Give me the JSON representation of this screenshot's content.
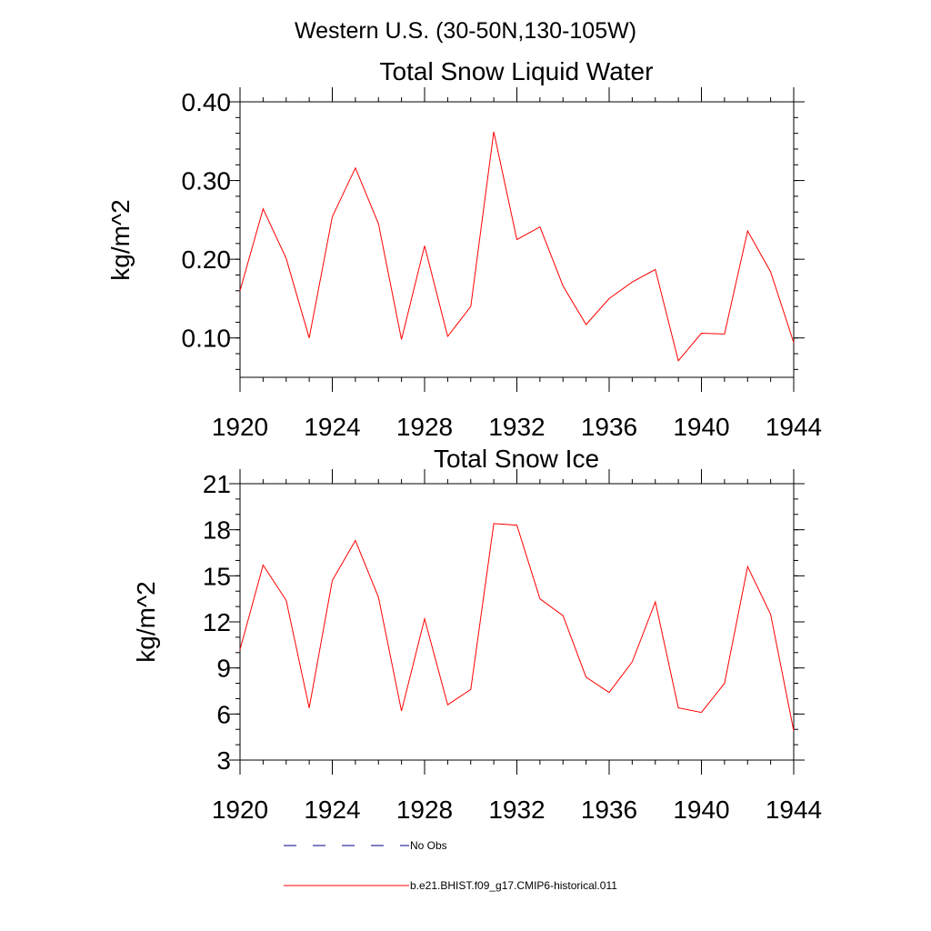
{
  "figure": {
    "suptitle": "Western U.S. (30-50N,130-105W)"
  },
  "colors": {
    "series": "#ff0000",
    "obs": "#000080",
    "axis": "#000000"
  },
  "chart_data": [
    {
      "type": "line",
      "title": "Total Snow Liquid Water",
      "ylabel": "kg/m^2",
      "xlabel": "",
      "xlim": [
        1920,
        1944
      ],
      "ylim": [
        0.05,
        0.4
      ],
      "xticks": [
        1920,
        1924,
        1928,
        1932,
        1936,
        1940,
        1944
      ],
      "xtick_labels": [
        "1920",
        "1924",
        "1928",
        "1932",
        "1936",
        "1940",
        "1944"
      ],
      "yticks": [
        0.1,
        0.2,
        0.3,
        0.4
      ],
      "ytick_labels": [
        "0.10",
        "0.20",
        "0.30",
        "0.40"
      ],
      "yminor_step": 0.02,
      "grid": false,
      "x": [
        1920,
        1921,
        1922,
        1923,
        1924,
        1925,
        1926,
        1927,
        1928,
        1929,
        1930,
        1931,
        1932,
        1933,
        1934,
        1935,
        1936,
        1937,
        1938,
        1939,
        1940,
        1941,
        1942,
        1943,
        1944
      ],
      "series": [
        {
          "name": "b.e21.BHIST.f09_g17.CMIP6-historical.011",
          "values": [
            0.16,
            0.264,
            0.201,
            0.1,
            0.254,
            0.316,
            0.245,
            0.098,
            0.217,
            0.102,
            0.14,
            0.362,
            0.225,
            0.241,
            0.166,
            0.117,
            0.15,
            0.171,
            0.187,
            0.071,
            0.106,
            0.105,
            0.236,
            0.184,
            0.094
          ]
        }
      ]
    },
    {
      "type": "line",
      "title": "Total Snow Ice",
      "ylabel": "kg/m^2",
      "xlabel": "",
      "xlim": [
        1920,
        1944
      ],
      "ylim": [
        3,
        21
      ],
      "xticks": [
        1920,
        1924,
        1928,
        1932,
        1936,
        1940,
        1944
      ],
      "xtick_labels": [
        "1920",
        "1924",
        "1928",
        "1932",
        "1936",
        "1940",
        "1944"
      ],
      "yticks": [
        3,
        6,
        9,
        12,
        15,
        18,
        21
      ],
      "ytick_labels": [
        "3",
        "6",
        "9",
        "12",
        "15",
        "18",
        "21"
      ],
      "yminor_step": 1,
      "grid": false,
      "x": [
        1920,
        1921,
        1922,
        1923,
        1924,
        1925,
        1926,
        1927,
        1928,
        1929,
        1930,
        1931,
        1932,
        1933,
        1934,
        1935,
        1936,
        1937,
        1938,
        1939,
        1940,
        1941,
        1942,
        1943,
        1944
      ],
      "series": [
        {
          "name": "b.e21.BHIST.f09_g17.CMIP6-historical.011",
          "values": [
            10.2,
            15.7,
            13.4,
            6.4,
            14.7,
            17.3,
            13.6,
            6.2,
            12.2,
            6.6,
            7.6,
            18.4,
            18.3,
            13.5,
            12.4,
            8.4,
            7.4,
            9.4,
            13.3,
            6.4,
            6.1,
            8.0,
            15.6,
            12.5,
            4.9
          ]
        }
      ]
    }
  ],
  "legend": {
    "placement": "bottom-center",
    "items": [
      {
        "label": "No Obs",
        "style": "dashed",
        "color": "#000080"
      },
      {
        "label": "b.e21.BHIST.f09_g17.CMIP6-historical.011",
        "style": "solid",
        "color": "#ff0000"
      }
    ]
  }
}
